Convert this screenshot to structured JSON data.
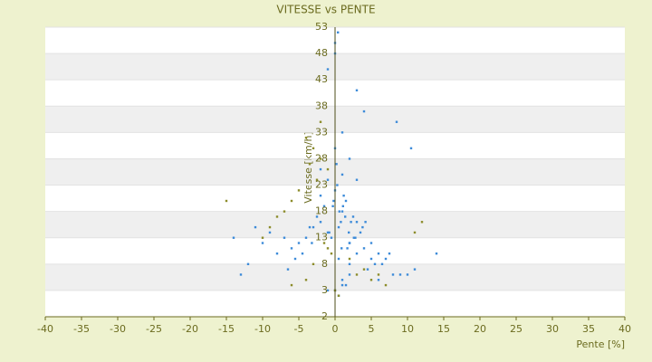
{
  "chart_data": {
    "type": "scatter",
    "title": "VITESSE vs PENTE",
    "x_label": "Pente [%]",
    "y_label": "Vitesse [km/h]",
    "xlim": [
      -40,
      40
    ],
    "xticks": [
      -40,
      -35,
      -30,
      -25,
      -20,
      -15,
      -10,
      -5,
      0,
      5,
      10,
      15,
      20,
      25,
      30,
      35,
      40
    ],
    "ylim": [
      -2,
      53
    ],
    "yticks": [
      -2,
      3,
      8,
      13,
      18,
      23,
      28,
      33,
      38,
      43,
      48,
      53
    ],
    "banded_grid": true,
    "series": [
      {
        "color": "#3d8bd9",
        "x": [
          0.5,
          1,
          -1,
          2,
          3,
          -2,
          1.5,
          0,
          -0.5,
          2.5,
          4,
          -3,
          5,
          -4,
          1,
          0.2,
          3.5,
          -1.5,
          2,
          6,
          -5,
          0.8,
          1.2,
          -2.5,
          4.5,
          7,
          -6,
          3,
          -7,
          8,
          -8,
          10,
          -10,
          0,
          1,
          2,
          -1,
          0.3,
          -0.3,
          1.7,
          2.8,
          -3.5,
          5.5,
          6.5,
          -9,
          11,
          -12,
          14,
          -14,
          9,
          -11,
          0.5,
          1,
          1.5,
          2,
          0,
          -1,
          3,
          4,
          -2,
          0.6,
          1.4,
          2.2,
          -0.8,
          3.8,
          -4.5,
          5,
          -5.5,
          6,
          -6.5,
          7.5,
          8.5,
          10.5,
          -13,
          0,
          0.5,
          1,
          -1,
          2,
          3,
          0,
          0.4,
          1.1,
          -2,
          2.6,
          0.9,
          -0.2,
          1.9,
          4.2,
          -3.2
        ],
        "y": [
          15,
          18,
          14,
          12,
          10,
          16,
          20,
          22,
          13,
          17,
          11,
          15,
          9,
          13,
          25,
          27,
          14,
          19,
          8,
          10,
          12,
          16,
          21,
          17,
          7,
          9,
          11,
          24,
          13,
          6,
          10,
          6,
          12,
          30,
          33,
          28,
          24,
          23,
          19,
          11,
          13,
          15,
          8,
          8,
          14,
          7,
          8,
          10,
          13,
          6,
          15,
          9,
          5,
          4,
          6,
          48,
          45,
          41,
          37,
          26,
          18,
          17,
          16,
          14,
          15,
          10,
          12,
          9,
          5,
          7,
          10,
          35,
          30,
          6,
          3,
          2,
          4,
          3,
          12,
          16,
          50,
          52,
          19,
          21,
          13,
          11,
          20,
          14,
          16,
          12
        ]
      },
      {
        "color": "#8c8c2a",
        "x": [
          -3,
          -4,
          -2,
          -1,
          -5,
          -6,
          -2.5,
          -3.5,
          -7,
          -8,
          -10,
          -9,
          -15,
          -0.5,
          -1.5,
          5,
          6,
          7,
          4,
          3,
          11,
          12,
          -4,
          -3,
          -6,
          0,
          0.5,
          -1,
          2,
          -2
        ],
        "y": [
          30,
          32,
          28,
          26,
          22,
          20,
          24,
          27,
          18,
          17,
          13,
          15,
          20,
          10,
          12,
          5,
          6,
          4,
          7,
          6,
          14,
          16,
          5,
          8,
          4,
          3,
          2,
          11,
          9,
          35
        ]
      }
    ]
  }
}
